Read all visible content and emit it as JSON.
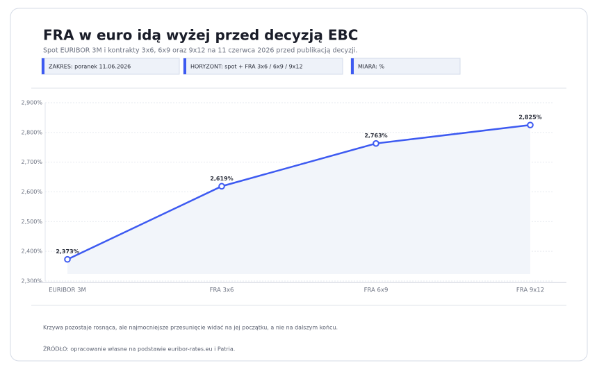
{
  "chart_data": {
    "type": "line",
    "title": "FRA w euro idą wyżej przed decyzją EBC",
    "subtitle": "Spot EURIBOR 3M i kontrakty 3x6, 6x9 oraz 9x12 na 11 czerwca 2026 przed publikacją decyzji.",
    "badges": [
      "ZAKRES: poranek 11.06.2026",
      "HORYZONT: spot + FRA 3x6 / 6x9 / 9x12",
      "MIARA: %"
    ],
    "categories": [
      "EURIBOR 3M",
      "FRA 3x6",
      "FRA 6x9",
      "FRA 9x12"
    ],
    "values": [
      2.373,
      2.619,
      2.763,
      2.825
    ],
    "value_labels": [
      "2,373%",
      "2,619%",
      "2,763%",
      "2,825%"
    ],
    "color": "#3d5af1",
    "ylim": [
      2.3,
      2.9
    ],
    "yticks": [
      {
        "value": 2.3,
        "label": "2,300%"
      },
      {
        "value": 2.4,
        "label": "2,400%"
      },
      {
        "value": 2.5,
        "label": "2,500%"
      },
      {
        "value": 2.6,
        "label": "2,600%"
      },
      {
        "value": 2.7,
        "label": "2,700%"
      },
      {
        "value": 2.8,
        "label": "2,800%"
      },
      {
        "value": 2.9,
        "label": "2,900%"
      }
    ],
    "grid": true,
    "note": "Krzywa pozostaje rosnąca, ale najmocniejsze przesunięcie widać na jej początku, a nie na dalszym końcu.",
    "source": "ŹRÓDŁO: opracowanie własne na podstawie euribor-rates.eu i Patria."
  }
}
